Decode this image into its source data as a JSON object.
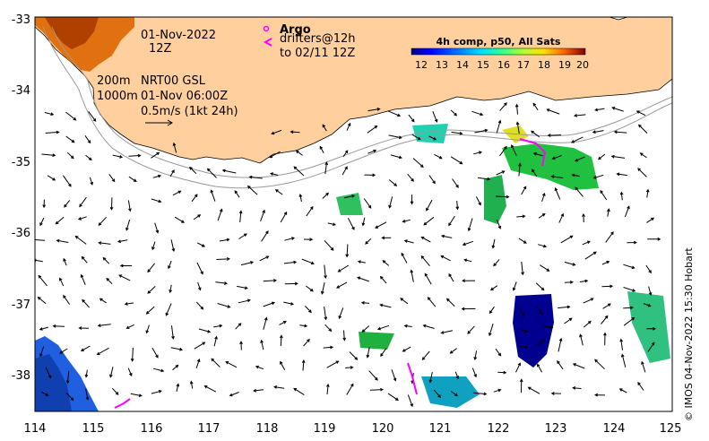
{
  "annotations": {
    "date_line1": "01-Nov-2022",
    "date_line2": "12Z",
    "argo_label": "Argo",
    "drifters_line1": "drifters@12h",
    "drifters_line2": "to 02/11 12Z",
    "contour_200m": "200m",
    "contour_1000m": "1000m",
    "altimetry_source": "NRT00 GSL",
    "altimetry_time": "01-Nov 06:00Z",
    "velocity_scale": "0.5m/s (1kt 24h)"
  },
  "colorbar": {
    "title": "4h comp, p50, All Sats",
    "ticks": [
      "12",
      "13",
      "14",
      "15",
      "16",
      "17",
      "18",
      "19",
      "20"
    ],
    "colors": [
      "#00007f",
      "#0000ff",
      "#0080ff",
      "#00e0ff",
      "#30ff90",
      "#b0ff30",
      "#ffe000",
      "#ff8000",
      "#ff1000",
      "#7f0000"
    ]
  },
  "axes": {
    "x_ticks": [
      "114",
      "115",
      "116",
      "117",
      "118",
      "119",
      "120",
      "121",
      "122",
      "123",
      "124",
      "125"
    ],
    "y_ticks": [
      "-33",
      "-34",
      "-35",
      "-36",
      "-37",
      "-38"
    ]
  },
  "credit": "© IMOS 04-Nov-2022 15:30 Hobart",
  "colors": {
    "land": "#ffd09e",
    "argo": "#ff00ff",
    "contour": "#999999"
  }
}
